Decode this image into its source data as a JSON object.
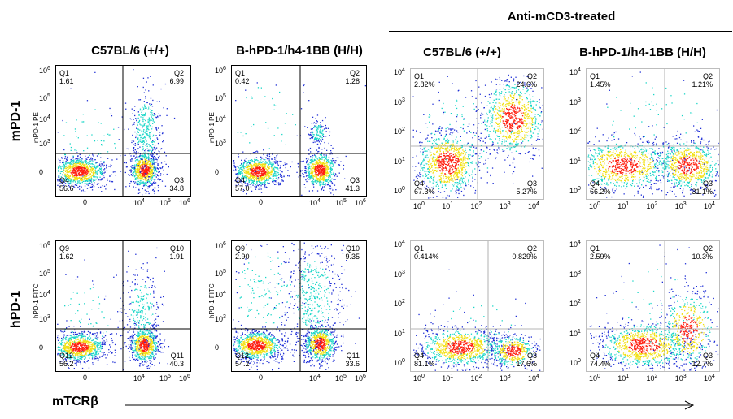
{
  "header": {
    "group_title": "Anti-mCD3-treated"
  },
  "column_titles": [
    "C57BL/6 (+/+)",
    "B-hPD-1/h4-1BB (H/H)",
    "C57BL/6 (+/+)",
    "B-hPD-1/h4-1BB (H/H)"
  ],
  "row_labels": [
    "mPD-1",
    "hPD-1"
  ],
  "x_axis_label": "mTCRβ",
  "colors": {
    "low": "#1f2fd6",
    "mid": "#19d6c7",
    "high": "#f2e012",
    "peak": "#ff1f10",
    "gate_gray": "#9e9e9e"
  },
  "chart_data": [
    {
      "type": "scatter",
      "style": "untreated",
      "row": "mPD-1",
      "condition": "C57BL/6 (+/+)",
      "ylabel": "mPD-1 PE",
      "xticks": [
        "0",
        "10^4",
        "10^5",
        "10^6"
      ],
      "yticks": [
        "10^6",
        "10^5",
        "10^4",
        "10^3",
        "0"
      ],
      "quadrants": [
        {
          "name": "Q1",
          "value": "1.61",
          "pos": "tl"
        },
        {
          "name": "Q2",
          "value": "6.99",
          "pos": "tr"
        },
        {
          "name": "Q4",
          "value": "56.6",
          "pos": "bl"
        },
        {
          "name": "Q3",
          "value": "34.8",
          "pos": "br"
        }
      ],
      "clusters": [
        {
          "x": 0.1,
          "y": 0.25
        },
        {
          "x": 0.35,
          "y": 0.1
        }
      ]
    },
    {
      "type": "scatter",
      "style": "untreated",
      "row": "mPD-1",
      "condition": "B-hPD-1/h4-1BB (H/H)",
      "ylabel": "mPD-1 PE",
      "xticks": [
        "0",
        "10^4",
        "10^5",
        "10^6"
      ],
      "yticks": [
        "10^6",
        "10^5",
        "10^4",
        "10^3",
        "0"
      ],
      "quadrants": [
        {
          "name": "Q1",
          "value": "0.42",
          "pos": "tl"
        },
        {
          "name": "Q2",
          "value": "1.28",
          "pos": "tr"
        },
        {
          "name": "Q4",
          "value": "57.0",
          "pos": "bl"
        },
        {
          "name": "Q3",
          "value": "41.3",
          "pos": "br"
        }
      ]
    },
    {
      "type": "scatter",
      "style": "treated",
      "row": "mPD-1",
      "condition": "Anti-mCD3-treated C57BL/6 (+/+)",
      "xticks": [
        "10^0",
        "10^1",
        "10^2",
        "10^3",
        "10^4"
      ],
      "yticks": [
        "10^4",
        "10^3",
        "10^2",
        "10^1",
        "10^0"
      ],
      "quadrants": [
        {
          "name": "Q1",
          "value": "2.82%",
          "pos": "tl"
        },
        {
          "name": "Q2",
          "value": "24.6%",
          "pos": "tr"
        },
        {
          "name": "Q4",
          "value": "67.3%",
          "pos": "bl"
        },
        {
          "name": "Q3",
          "value": "5.27%",
          "pos": "br"
        }
      ]
    },
    {
      "type": "scatter",
      "style": "treated",
      "row": "mPD-1",
      "condition": "Anti-mCD3-treated B-hPD-1/h4-1BB (H/H)",
      "xticks": [
        "10^0",
        "10^1",
        "10^2",
        "10^3",
        "10^4"
      ],
      "yticks": [
        "10^4",
        "10^3",
        "10^2",
        "10^1",
        "10^0"
      ],
      "quadrants": [
        {
          "name": "Q1",
          "value": "1.45%",
          "pos": "tl"
        },
        {
          "name": "Q2",
          "value": "1.21%",
          "pos": "tr"
        },
        {
          "name": "Q4",
          "value": "66.2%",
          "pos": "bl"
        },
        {
          "name": "Q3",
          "value": "31.1%",
          "pos": "br"
        }
      ]
    },
    {
      "type": "scatter",
      "style": "untreated",
      "row": "hPD-1",
      "condition": "C57BL/6 (+/+)",
      "ylabel": "hPD-1 FITC",
      "xticks": [
        "0",
        "10^4",
        "10^5",
        "10^6"
      ],
      "yticks": [
        "10^6",
        "10^5",
        "10^4",
        "10^3",
        "0"
      ],
      "quadrants": [
        {
          "name": "Q9",
          "value": "1.62",
          "pos": "tl"
        },
        {
          "name": "Q10",
          "value": "1.91",
          "pos": "tr"
        },
        {
          "name": "Q12",
          "value": "56.2",
          "pos": "bl"
        },
        {
          "name": "Q11",
          "value": "40.3",
          "pos": "br"
        }
      ]
    },
    {
      "type": "scatter",
      "style": "untreated",
      "row": "hPD-1",
      "condition": "B-hPD-1/h4-1BB (H/H)",
      "ylabel": "hPD-1 FITC",
      "xticks": [
        "0",
        "10^4",
        "10^5",
        "10^6"
      ],
      "yticks": [
        "10^6",
        "10^5",
        "10^4",
        "10^3",
        "0"
      ],
      "quadrants": [
        {
          "name": "Q9",
          "value": "2.90",
          "pos": "tl"
        },
        {
          "name": "Q10",
          "value": "9.35",
          "pos": "tr"
        },
        {
          "name": "Q12",
          "value": "54.2",
          "pos": "bl"
        },
        {
          "name": "Q11",
          "value": "33.6",
          "pos": "br"
        }
      ]
    },
    {
      "type": "scatter",
      "style": "treated",
      "row": "hPD-1",
      "condition": "Anti-mCD3-treated C57BL/6 (+/+)",
      "xticks": [
        "10^0",
        "10^1",
        "10^2",
        "10^3",
        "10^4"
      ],
      "yticks": [
        "10^4",
        "10^3",
        "10^2",
        "10^1",
        "10^0"
      ],
      "quadrants": [
        {
          "name": "Q1",
          "value": "0.414%",
          "pos": "tl"
        },
        {
          "name": "Q2",
          "value": "0.829%",
          "pos": "tr"
        },
        {
          "name": "Q4",
          "value": "81.1%",
          "pos": "bl"
        },
        {
          "name": "Q3",
          "value": "17.6%",
          "pos": "br"
        }
      ]
    },
    {
      "type": "scatter",
      "style": "treated",
      "row": "hPD-1",
      "condition": "Anti-mCD3-treated B-hPD-1/h4-1BB (H/H)",
      "xticks": [
        "10^0",
        "10^1",
        "10^2",
        "10^3",
        "10^4"
      ],
      "yticks": [
        "10^4",
        "10^3",
        "10^2",
        "10^1",
        "10^0"
      ],
      "quadrants": [
        {
          "name": "Q1",
          "value": "2.59%",
          "pos": "tl"
        },
        {
          "name": "Q2",
          "value": "10.3%",
          "pos": "tr"
        },
        {
          "name": "Q4",
          "value": "74.4%",
          "pos": "bl"
        },
        {
          "name": "Q3",
          "value": "12.7%",
          "pos": "br"
        }
      ]
    }
  ]
}
